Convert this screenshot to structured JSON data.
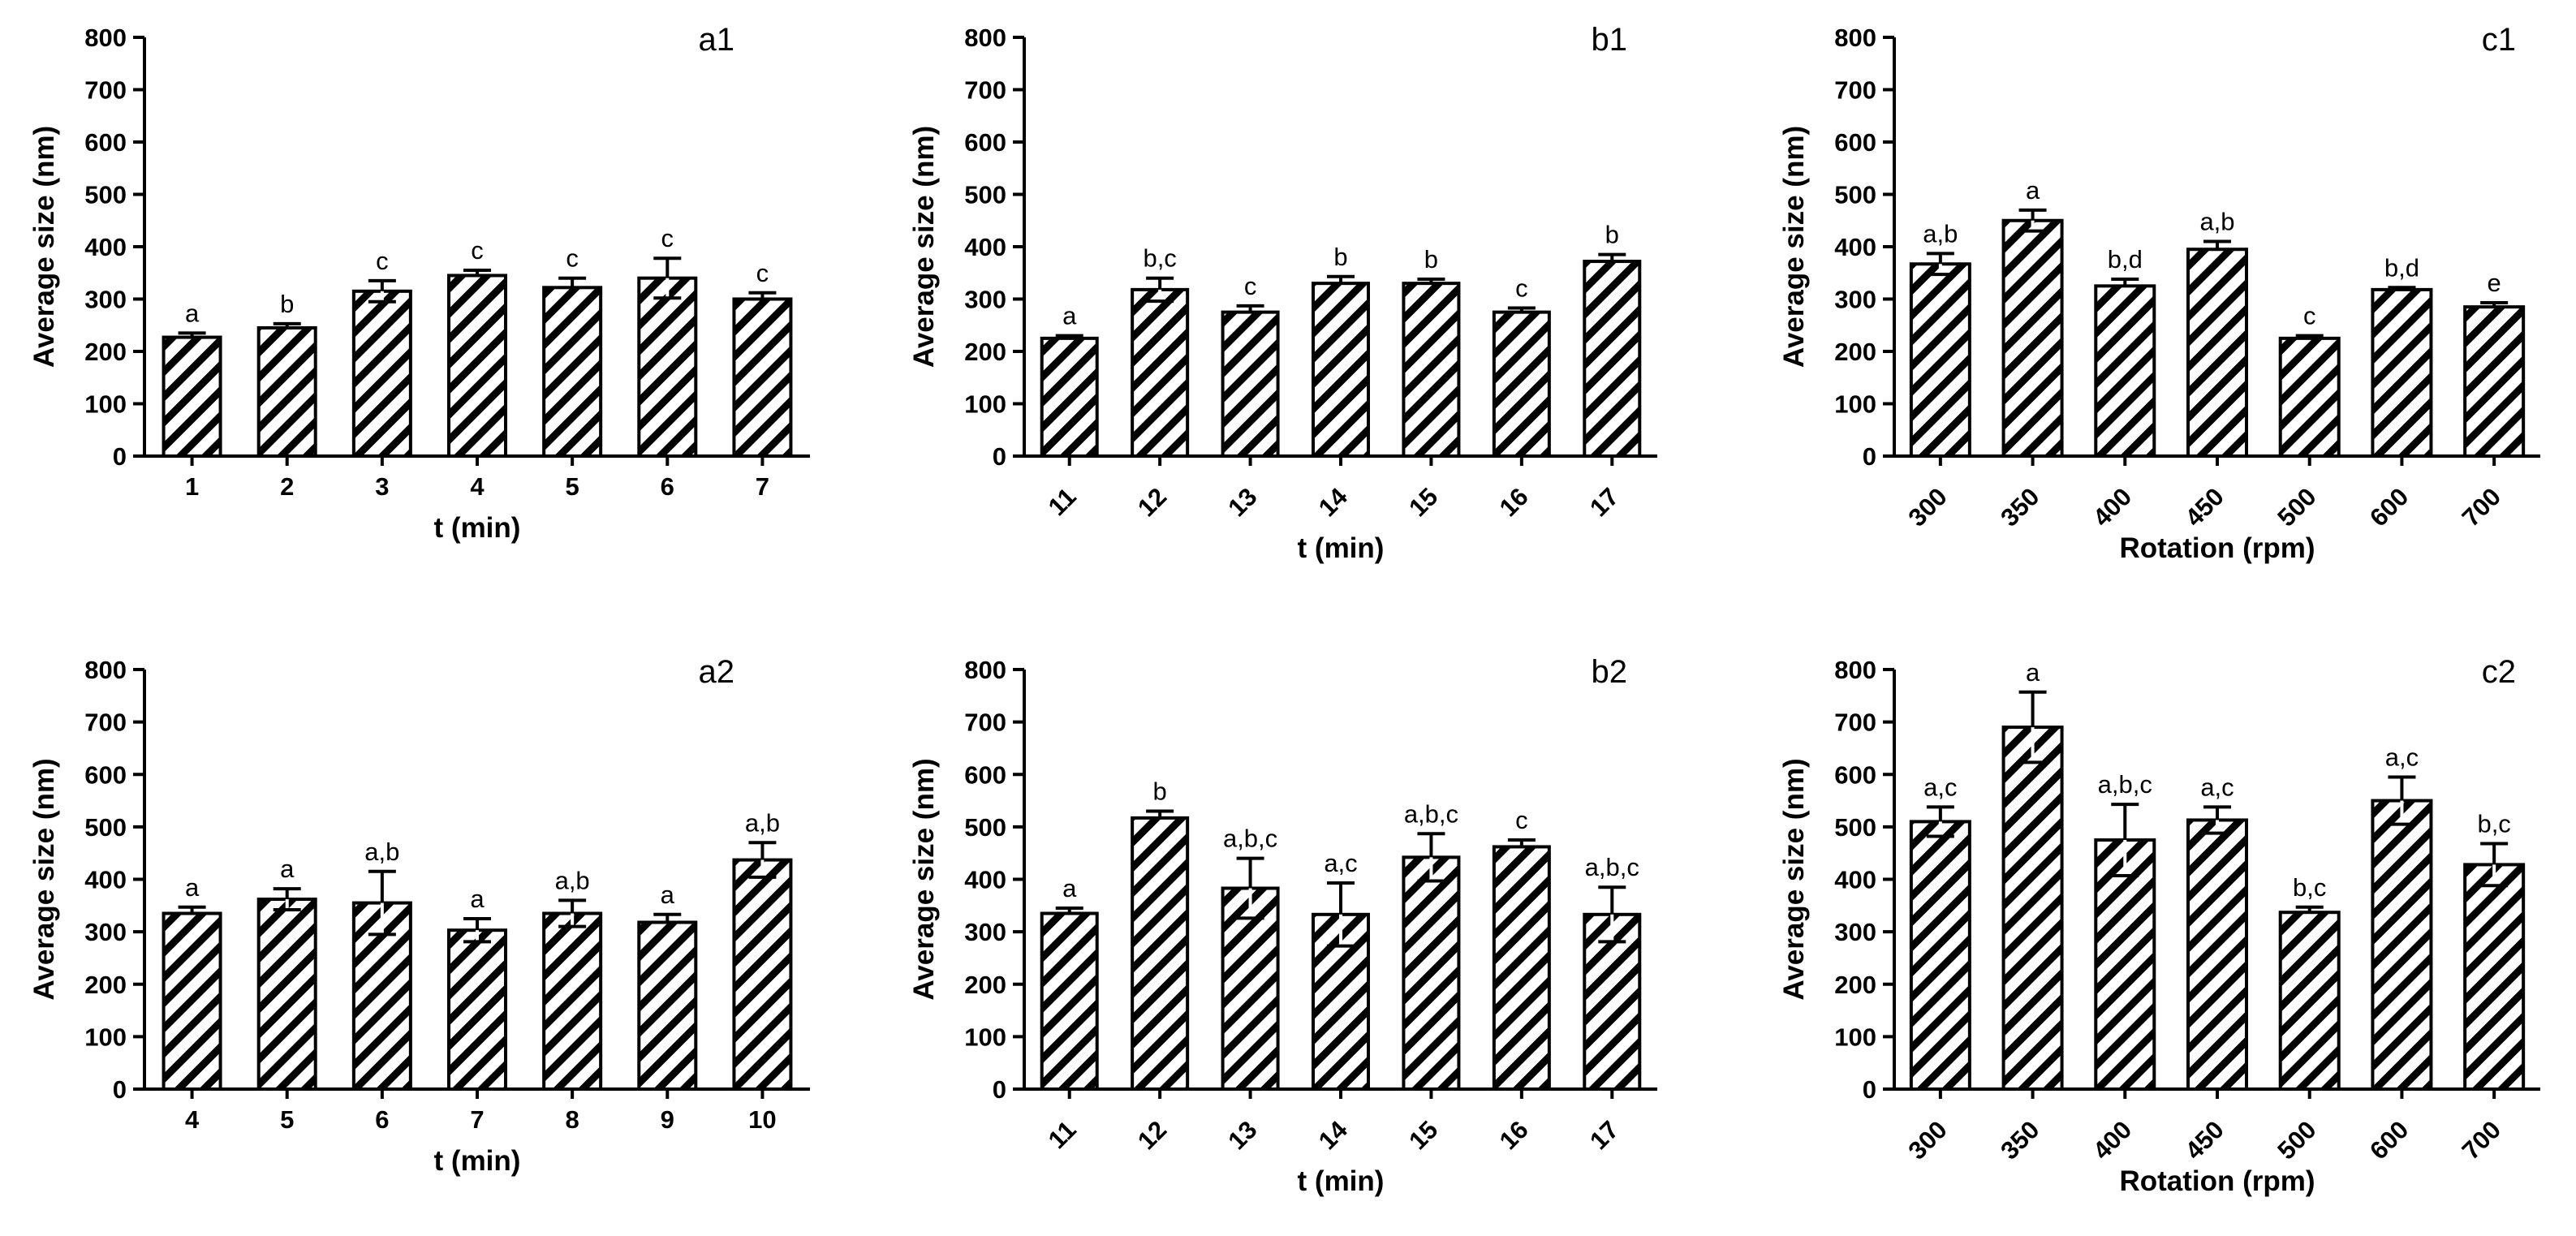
{
  "colors": {
    "bar_fill": "#ffffff",
    "hatch": "#000000",
    "axis": "#000000"
  },
  "chart_data": [
    {
      "type": "bar",
      "id": "a1",
      "title": "",
      "categories": [
        "1",
        "2",
        "3",
        "4",
        "5",
        "6",
        "7"
      ],
      "values": [
        227,
        245,
        315,
        345,
        322,
        340,
        300
      ],
      "errors": [
        8,
        8,
        20,
        10,
        18,
        38,
        12
      ],
      "significance": [
        "a",
        "b",
        "c",
        "c",
        "c",
        "c",
        "c"
      ],
      "xlabel": "t (min)",
      "ylabel": "Average size (nm)",
      "ylim": [
        0,
        800
      ],
      "yticks": [
        0,
        100,
        200,
        300,
        400,
        500,
        600,
        700,
        800
      ],
      "xtick_rotation": 0
    },
    {
      "type": "bar",
      "id": "b1",
      "title": "",
      "categories": [
        "11",
        "12",
        "13",
        "14",
        "15",
        "16",
        "17"
      ],
      "values": [
        225,
        318,
        275,
        330,
        330,
        275,
        372
      ],
      "errors": [
        5,
        22,
        12,
        13,
        8,
        8,
        13
      ],
      "significance": [
        "a",
        "b,c",
        "c",
        "b",
        "b",
        "c",
        "b"
      ],
      "xlabel": "t (min)",
      "ylabel": "Average size (nm)",
      "ylim": [
        0,
        800
      ],
      "yticks": [
        0,
        100,
        200,
        300,
        400,
        500,
        600,
        700,
        800
      ],
      "xtick_rotation": -45
    },
    {
      "type": "bar",
      "id": "c1",
      "title": "",
      "categories": [
        "300",
        "350",
        "400",
        "450",
        "500",
        "600",
        "700"
      ],
      "values": [
        367,
        450,
        325,
        395,
        225,
        318,
        285
      ],
      "errors": [
        20,
        20,
        13,
        15,
        5,
        4,
        8
      ],
      "significance": [
        "a,b",
        "a",
        "b,d",
        "a,b",
        "c",
        "b,d",
        "e"
      ],
      "xlabel": "Rotation (rpm)",
      "ylabel": "Average size (nm)",
      "ylim": [
        0,
        800
      ],
      "yticks": [
        0,
        100,
        200,
        300,
        400,
        500,
        600,
        700,
        800
      ],
      "xtick_rotation": -45
    },
    {
      "type": "bar",
      "id": "a2",
      "title": "",
      "categories": [
        "4",
        "5",
        "6",
        "7",
        "8",
        "9",
        "10"
      ],
      "values": [
        335,
        362,
        355,
        303,
        335,
        318,
        437
      ],
      "errors": [
        12,
        20,
        60,
        22,
        25,
        15,
        33
      ],
      "significance": [
        "a",
        "a",
        "a,b",
        "a",
        "a,b",
        "a",
        "a,b"
      ],
      "xlabel": "t (min)",
      "ylabel": "Average size (nm)",
      "ylim": [
        0,
        800
      ],
      "yticks": [
        0,
        100,
        200,
        300,
        400,
        500,
        600,
        700,
        800
      ],
      "xtick_rotation": 0
    },
    {
      "type": "bar",
      "id": "b2",
      "title": "",
      "categories": [
        "11",
        "12",
        "13",
        "14",
        "15",
        "16",
        "17"
      ],
      "values": [
        335,
        517,
        383,
        333,
        442,
        462,
        333
      ],
      "errors": [
        10,
        13,
        57,
        60,
        45,
        13,
        52
      ],
      "significance": [
        "a",
        "b",
        "a,b,c",
        "a,c",
        "a,b,c",
        "c",
        "a,b,c"
      ],
      "xlabel": "t (min)",
      "ylabel": "Average size (nm)",
      "ylim": [
        0,
        800
      ],
      "yticks": [
        0,
        100,
        200,
        300,
        400,
        500,
        600,
        700,
        800
      ],
      "xtick_rotation": -45
    },
    {
      "type": "bar",
      "id": "c2",
      "title": "",
      "categories": [
        "300",
        "350",
        "400",
        "450",
        "500",
        "600",
        "700"
      ],
      "values": [
        510,
        690,
        475,
        513,
        337,
        550,
        428
      ],
      "errors": [
        28,
        67,
        68,
        25,
        10,
        45,
        40
      ],
      "significance": [
        "a,c",
        "a",
        "a,b,c",
        "a,c",
        "b,c",
        "a,c",
        "b,c"
      ],
      "xlabel": "Rotation (rpm)",
      "ylabel": "Average size (nm)",
      "ylim": [
        0,
        800
      ],
      "yticks": [
        0,
        100,
        200,
        300,
        400,
        500,
        600,
        700,
        800
      ],
      "xtick_rotation": -45
    }
  ]
}
